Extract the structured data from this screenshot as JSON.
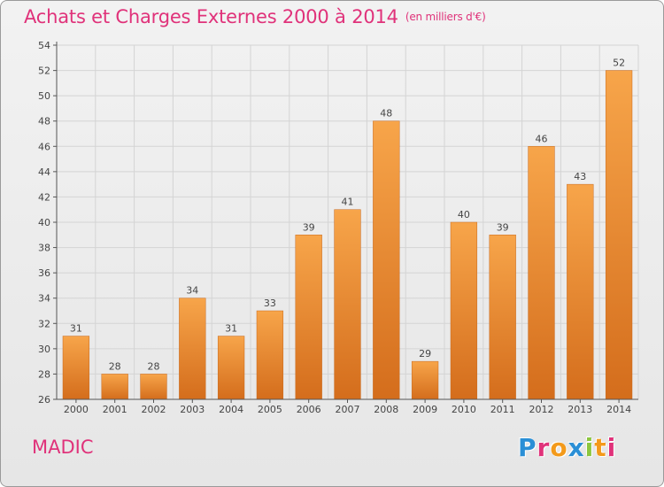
{
  "header": {
    "title": "Achats et Charges Externes 2000 à 2014",
    "subtitle": "(en milliers d'€)"
  },
  "footer": {
    "town": "MADIC",
    "logo": {
      "letters": [
        "P",
        "r",
        "o",
        "x",
        "i",
        "t",
        "i"
      ],
      "colors": [
        "#2a8fd6",
        "#e0327a",
        "#f39a1b",
        "#2a8fd6",
        "#8cc63f",
        "#f39a1b",
        "#e0327a"
      ]
    }
  },
  "chart_data": {
    "type": "bar",
    "categories": [
      "2000",
      "2001",
      "2002",
      "2003",
      "2004",
      "2005",
      "2006",
      "2007",
      "2008",
      "2009",
      "2010",
      "2011",
      "2012",
      "2013",
      "2014"
    ],
    "values": [
      31,
      28,
      28,
      34,
      31,
      33,
      39,
      41,
      48,
      29,
      40,
      39,
      46,
      43,
      52
    ],
    "ylim": [
      26,
      54
    ],
    "yticks": [
      26,
      28,
      30,
      32,
      34,
      36,
      38,
      40,
      42,
      44,
      46,
      48,
      50,
      52,
      54
    ],
    "grid": true,
    "bar_color_top": "#f7a54a",
    "bar_color_bottom": "#d46d1c"
  }
}
